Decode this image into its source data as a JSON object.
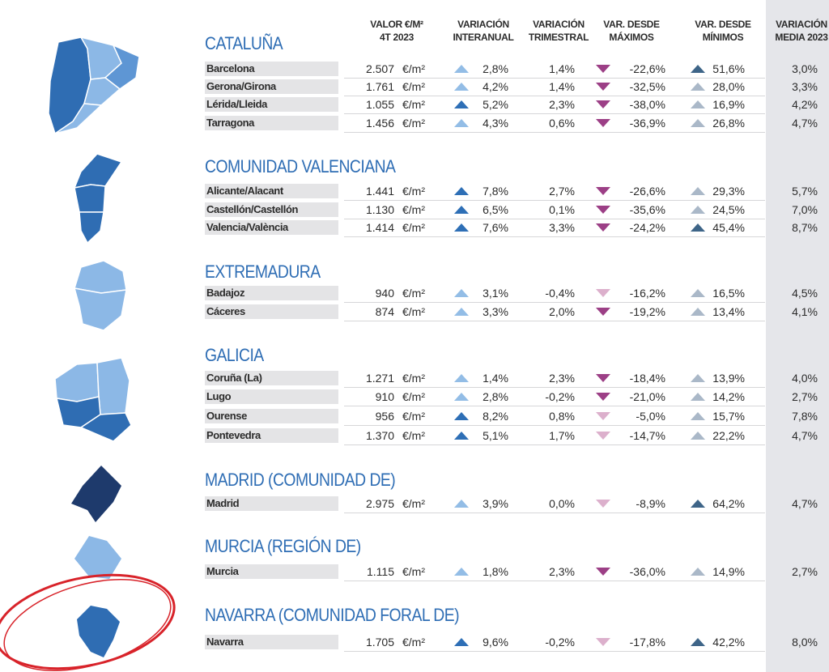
{
  "headers": [
    [
      "VALOR €/M²",
      "4T 2023"
    ],
    [
      "VARIACIÓN",
      "INTERANUAL"
    ],
    [
      "VARIACIÓN",
      "TRIMESTRAL"
    ],
    [
      "VAR. DESDE",
      "MÁXIMOS"
    ],
    [
      "VAR. DESDE",
      "MÍNIMOS"
    ],
    [
      "VARIACIÓN",
      "MEDIA 2023"
    ]
  ],
  "unit": "€/m²",
  "regions": [
    {
      "name": "CATALUÑA",
      "rows": [
        {
          "name": "Barcelona",
          "cells": [
            "2.507",
            "2,8%",
            "1,4%",
            "-22,6%",
            "51,6%",
            "3,0%"
          ],
          "arrows": [
            "#93bde6",
            "#9c3f86",
            "#3e6588"
          ]
        },
        {
          "name": "Gerona/Girona",
          "cells": [
            "1.761",
            "4,2%",
            "1,4%",
            "-32,5%",
            "28,0%",
            "3,3%"
          ],
          "arrows": [
            "#93bde6",
            "#9c3f86",
            "#aab8c8"
          ]
        },
        {
          "name": "Lérida/Lleida",
          "cells": [
            "1.055",
            "5,2%",
            "2,3%",
            "-38,0%",
            "16,9%",
            "4,2%"
          ],
          "arrows": [
            "#2e6fb6",
            "#9c3f86",
            "#aab8c8"
          ]
        },
        {
          "name": "Tarragona",
          "cells": [
            "1.456",
            "4,3%",
            "0,6%",
            "-36,9%",
            "26,8%",
            "4,7%"
          ],
          "arrows": [
            "#93bde6",
            "#9c3f86",
            "#aab8c8"
          ]
        }
      ]
    },
    {
      "name": "COMUNIDAD VALENCIANA",
      "rows": [
        {
          "name": "Alicante/Alacant",
          "cells": [
            "1.441",
            "7,8%",
            "2,7%",
            "-26,6%",
            "29,3%",
            "5,7%"
          ],
          "arrows": [
            "#2e6fb6",
            "#9c3f86",
            "#aab8c8"
          ]
        },
        {
          "name": "Castellón/Castellón",
          "cells": [
            "1.130",
            "6,5%",
            "0,1%",
            "-35,6%",
            "24,5%",
            "7,0%"
          ],
          "arrows": [
            "#2e6fb6",
            "#9c3f86",
            "#aab8c8"
          ]
        },
        {
          "name": "Valencia/València",
          "cells": [
            "1.414",
            "7,6%",
            "3,3%",
            "-24,2%",
            "45,4%",
            "8,7%"
          ],
          "arrows": [
            "#2e6fb6",
            "#9c3f86",
            "#3e6588"
          ]
        }
      ]
    },
    {
      "name": "EXTREMADURA",
      "rows": [
        {
          "name": "Badajoz",
          "cells": [
            "940",
            "3,1%",
            "-0,4%",
            "-16,2%",
            "16,5%",
            "4,5%"
          ],
          "arrows": [
            "#93bde6",
            "#dcb0cc",
            "#aab8c8"
          ]
        },
        {
          "name": "Cáceres",
          "cells": [
            "874",
            "3,3%",
            "2,0%",
            "-19,2%",
            "13,4%",
            "4,1%"
          ],
          "arrows": [
            "#93bde6",
            "#9c3f86",
            "#aab8c8"
          ]
        }
      ]
    },
    {
      "name": "GALICIA",
      "rows": [
        {
          "name": "Coruña (La)",
          "cells": [
            "1.271",
            "1,4%",
            "2,3%",
            "-18,4%",
            "13,9%",
            "4,0%"
          ],
          "arrows": [
            "#93bde6",
            "#9c3f86",
            "#aab8c8"
          ]
        },
        {
          "name": "Lugo",
          "cells": [
            "910",
            "2,8%",
            "-0,2%",
            "-21,0%",
            "14,2%",
            "2,7%"
          ],
          "arrows": [
            "#93bde6",
            "#9c3f86",
            "#aab8c8"
          ]
        },
        {
          "name": "Ourense",
          "cells": [
            "956",
            "8,2%",
            "0,8%",
            "-5,0%",
            "15,7%",
            "7,8%"
          ],
          "arrows": [
            "#2e6fb6",
            "#dcb0cc",
            "#aab8c8"
          ]
        },
        {
          "name": "Pontevedra",
          "cells": [
            "1.370",
            "5,1%",
            "1,7%",
            "-14,7%",
            "22,2%",
            "4,7%"
          ],
          "arrows": [
            "#2e6fb6",
            "#dcb0cc",
            "#aab8c8"
          ]
        }
      ]
    },
    {
      "name": "MADRID (COMUNIDAD DE)",
      "rows": [
        {
          "name": "Madrid",
          "cells": [
            "2.975",
            "3,9%",
            "0,0%",
            "-8,9%",
            "64,2%",
            "4,7%"
          ],
          "arrows": [
            "#93bde6",
            "#dcb0cc",
            "#3e6588"
          ]
        }
      ]
    },
    {
      "name": "MURCIA (REGIÓN DE)",
      "rows": [
        {
          "name": "Murcia",
          "cells": [
            "1.115",
            "1,8%",
            "2,3%",
            "-36,0%",
            "14,9%",
            "2,7%"
          ],
          "arrows": [
            "#93bde6",
            "#9c3f86",
            "#aab8c8"
          ]
        }
      ]
    },
    {
      "name": "NAVARRA (COMUNIDAD FORAL DE)",
      "rows": [
        {
          "name": "Navarra",
          "cells": [
            "1.705",
            "9,6%",
            "-0,2%",
            "-17,8%",
            "42,2%",
            "8,0%"
          ],
          "arrows": [
            "#2e6fb6",
            "#dcb0cc",
            "#3e6588"
          ]
        }
      ]
    }
  ]
}
